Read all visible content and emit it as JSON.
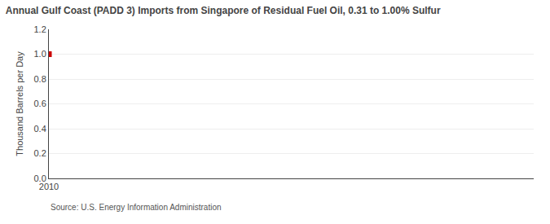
{
  "chart_data": {
    "type": "scatter",
    "title": "Annual Gulf Coast (PADD 3) Imports from Singapore of Residual Fuel Oil, 0.31 to 1.00% Sulfur",
    "y_label": "Thousand Barrels per Day",
    "source": "Source: U.S. Energy Information Administration",
    "x": [
      2010
    ],
    "values": [
      1.0
    ],
    "color": "#cc0000",
    "marker": "square",
    "xlim": [
      2010,
      2021
    ],
    "xticks": [
      2010
    ],
    "ylim": [
      0.0,
      1.2
    ],
    "yticks": [
      {
        "value": 0.0,
        "label": "0.0"
      },
      0.2,
      0.4,
      0.6,
      0.8,
      {
        "value": 1.0,
        "label": "1.0"
      },
      1.2
    ],
    "grid": true
  }
}
